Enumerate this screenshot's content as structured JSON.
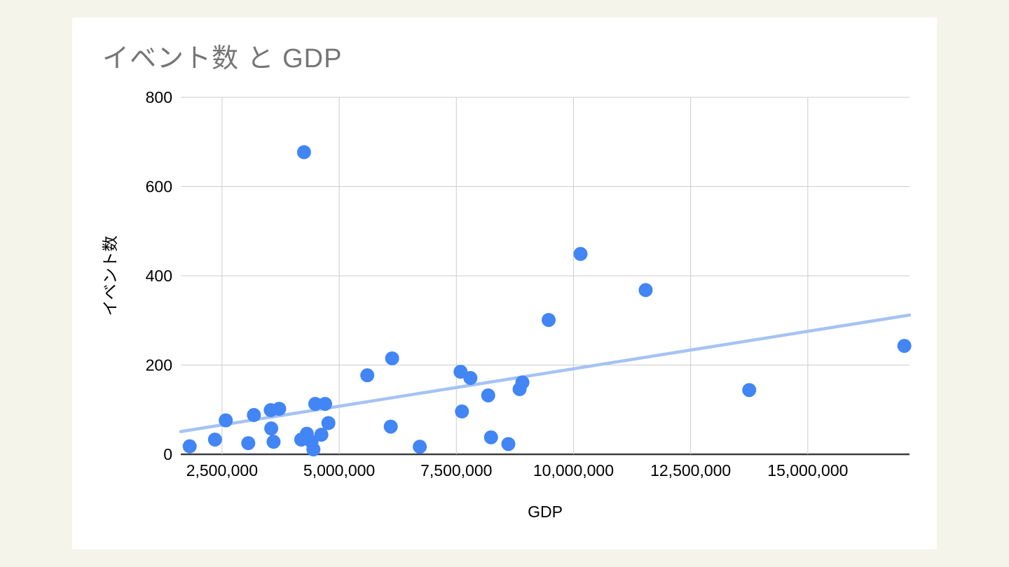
{
  "page": {
    "background_color": "#f4f4ea",
    "card_background_color": "#ffffff"
  },
  "chart": {
    "title": "イベント数 と GDP",
    "x_axis_title": "GDP",
    "y_axis_title": "イベント数",
    "colors": {
      "title_text": "#757575",
      "tick_text": "#000000",
      "gridline": "#cccccc",
      "axis_line": "#3c3c3c",
      "point": "#4285f4",
      "trendline": "#a5c3f3"
    }
  },
  "chart_data": {
    "type": "scatter",
    "title": "イベント数 と GDP",
    "xlabel": "GDP",
    "ylabel": "イベント数",
    "xlim": [
      1620000,
      17170000
    ],
    "ylim": [
      0,
      800
    ],
    "x_ticks": [
      2500000,
      5000000,
      7500000,
      10000000,
      12500000,
      15000000
    ],
    "y_ticks": [
      0,
      200,
      400,
      600,
      800
    ],
    "grid": true,
    "legend": false,
    "series": [
      {
        "name": "イベント数",
        "points": [
          [
            1810000,
            18
          ],
          [
            2350000,
            33
          ],
          [
            2580000,
            76
          ],
          [
            3060000,
            25
          ],
          [
            3180000,
            88
          ],
          [
            3540000,
            99
          ],
          [
            3720000,
            102
          ],
          [
            3550000,
            58
          ],
          [
            3600000,
            28
          ],
          [
            4250000,
            677
          ],
          [
            4490000,
            113
          ],
          [
            4700000,
            113
          ],
          [
            4770000,
            70
          ],
          [
            4620000,
            44
          ],
          [
            4310000,
            46
          ],
          [
            4190000,
            33
          ],
          [
            4410000,
            28
          ],
          [
            4450000,
            11
          ],
          [
            5600000,
            177
          ],
          [
            6130000,
            215
          ],
          [
            6100000,
            62
          ],
          [
            6720000,
            17
          ],
          [
            7590000,
            185
          ],
          [
            7800000,
            171
          ],
          [
            7620000,
            96
          ],
          [
            8180000,
            132
          ],
          [
            8240000,
            38
          ],
          [
            8610000,
            23
          ],
          [
            8850000,
            146
          ],
          [
            8910000,
            161
          ],
          [
            9470000,
            301
          ],
          [
            10150000,
            449
          ],
          [
            11540000,
            368
          ],
          [
            13750000,
            144
          ],
          [
            17060000,
            243
          ]
        ]
      }
    ],
    "trendline": {
      "x1": 1620000,
      "y1": 51,
      "x2": 17170000,
      "y2": 312
    }
  }
}
